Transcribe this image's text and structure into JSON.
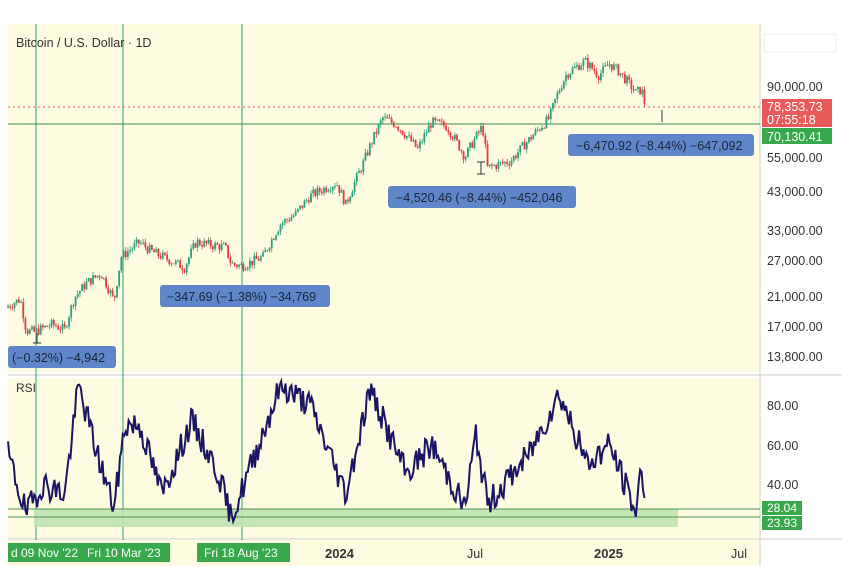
{
  "header": {
    "title": "Bitcoin / U.S. Dollar · 1D"
  },
  "colors": {
    "background": "#fdfbe0",
    "up": "#2aa17a",
    "down": "#e23c3c",
    "rsi_line": "#1b1464",
    "marker_blue": "#5f86c8",
    "current_price_red": "#e85a5a",
    "support_green": "#38a84d",
    "rsi_zone": "#bfe3b0",
    "divider": "#cfcfbf"
  },
  "price_pane": {
    "current_price": "78,353.73",
    "countdown": "07:55:18",
    "support_level": "70,130.41",
    "measurements": [
      {
        "text": "(−0.32%) −4,942"
      },
      {
        "text": "−347.69 (−1.38%) −34,769"
      },
      {
        "text": "−4,520.46 (−8.44%) −452,046"
      },
      {
        "text": "−6,470.92 (−8.44%) −647,092"
      }
    ]
  },
  "rsi_pane": {
    "label": "RSI",
    "level_upper": "28.04",
    "level_lower": "23.93"
  },
  "time_axis": {
    "date_labels": [
      {
        "text": "d 09 Nov '22"
      },
      {
        "text": "Fri 10 Mar '23"
      },
      {
        "text": "Fri 18 Aug '23"
      }
    ],
    "plain_labels": [
      {
        "text": "2024"
      },
      {
        "text": "Jul"
      },
      {
        "text": "2025"
      },
      {
        "text": "Jul"
      }
    ]
  },
  "chart_data": [
    {
      "type": "line",
      "subtype": "candlestick",
      "title": "Bitcoin / U.S. Dollar · 1D",
      "y_scale": "log",
      "ylim": [
        13000,
        125000
      ],
      "y_ticks": [
        13800,
        17000,
        21000,
        27000,
        33000,
        43000,
        55000,
        90000
      ],
      "y_tick_labels": [
        "13,800.00",
        "17,000.00",
        "21,000.00",
        "27,000.00",
        "33,000.00",
        "43,000.00",
        "55,000.00",
        "90,000.00"
      ],
      "xlim": [
        "2022-10-15",
        "2025-08-15"
      ],
      "x_tick_labels": [
        "2024",
        "Jul",
        "2025",
        "Jul"
      ],
      "series": [
        {
          "values": [
            [
              "2022-10-15",
              19500
            ],
            [
              "2022-11-01",
              20500
            ],
            [
              "2022-11-09",
              16500
            ],
            [
              "2022-11-20",
              16300
            ],
            [
              "2022-12-15",
              17200
            ],
            [
              "2023-01-01",
              16600
            ],
            [
              "2023-01-15",
              20800
            ],
            [
              "2023-02-01",
              23000
            ],
            [
              "2023-02-20",
              24500
            ],
            [
              "2023-03-10",
              20200
            ],
            [
              "2023-03-20",
              27500
            ],
            [
              "2023-04-14",
              30400
            ],
            [
              "2023-05-01",
              28500
            ],
            [
              "2023-06-15",
              25500
            ],
            [
              "2023-07-01",
              30500
            ],
            [
              "2023-07-15",
              30000
            ],
            [
              "2023-08-10",
              29400
            ],
            [
              "2023-08-18",
              26200
            ],
            [
              "2023-09-01",
              25800
            ],
            [
              "2023-09-15",
              26500
            ],
            [
              "2023-10-01",
              27500
            ],
            [
              "2023-10-25",
              34500
            ],
            [
              "2023-11-15",
              37000
            ],
            [
              "2023-12-05",
              42000
            ],
            [
              "2024-01-10",
              46000
            ],
            [
              "2024-01-23",
              39500
            ],
            [
              "2024-02-15",
              52000
            ],
            [
              "2024-03-14",
              72000
            ],
            [
              "2024-04-01",
              69000
            ],
            [
              "2024-05-01",
              58000
            ],
            [
              "2024-05-20",
              70000
            ],
            [
              "2024-06-10",
              68000
            ],
            [
              "2024-07-05",
              55000
            ],
            [
              "2024-07-29",
              68000
            ],
            [
              "2024-08-05",
              51000
            ],
            [
              "2024-09-06",
              53500
            ],
            [
              "2024-10-01",
              62000
            ],
            [
              "2024-10-29",
              72000
            ],
            [
              "2024-11-12",
              88000
            ],
            [
              "2024-11-22",
              98000
            ],
            [
              "2024-12-17",
              107000
            ],
            [
              "2025-01-05",
              97000
            ],
            [
              "2025-01-20",
              105000
            ],
            [
              "2025-02-01",
              100000
            ],
            [
              "2025-02-25",
              86000
            ],
            [
              "2025-03-05",
              88000
            ],
            [
              "2025-03-10",
              78353
            ]
          ]
        }
      ],
      "horizontal_levels": [
        78353.73,
        70130.41
      ],
      "legend": "none",
      "grid": false
    },
    {
      "type": "line",
      "title": "RSI",
      "ylim": [
        20,
        100
      ],
      "y_ticks": [
        40,
        60,
        80
      ],
      "y_tick_labels": [
        "40.00",
        "60.00",
        "80.00"
      ],
      "series": [
        {
          "values": [
            [
              "2022-10-15",
              55
            ],
            [
              "2022-11-09",
              25
            ],
            [
              "2022-12-01",
              40
            ],
            [
              "2023-01-01",
              35
            ],
            [
              "2023-01-20",
              90
            ],
            [
              "2023-02-15",
              55
            ],
            [
              "2023-03-10",
              28
            ],
            [
              "2023-03-25",
              70
            ],
            [
              "2023-04-14",
              70
            ],
            [
              "2023-05-15",
              35
            ],
            [
              "2023-06-25",
              72
            ],
            [
              "2023-08-01",
              45
            ],
            [
              "2023-08-18",
              22
            ],
            [
              "2023-09-15",
              50
            ],
            [
              "2023-10-25",
              90
            ],
            [
              "2023-12-05",
              80
            ],
            [
              "2024-01-23",
              35
            ],
            [
              "2024-02-25",
              88
            ],
            [
              "2024-04-15",
              45
            ],
            [
              "2024-05-20",
              60
            ],
            [
              "2024-07-05",
              28
            ],
            [
              "2024-07-20",
              65
            ],
            [
              "2024-08-05",
              30
            ],
            [
              "2024-10-01",
              55
            ],
            [
              "2024-11-12",
              86
            ],
            [
              "2024-12-20",
              50
            ],
            [
              "2025-01-20",
              60
            ],
            [
              "2025-02-25",
              26
            ],
            [
              "2025-03-05",
              48
            ],
            [
              "2025-03-10",
              36
            ]
          ]
        }
      ],
      "levels": [
        28.04,
        23.93
      ],
      "legend": "none",
      "grid": false
    }
  ]
}
